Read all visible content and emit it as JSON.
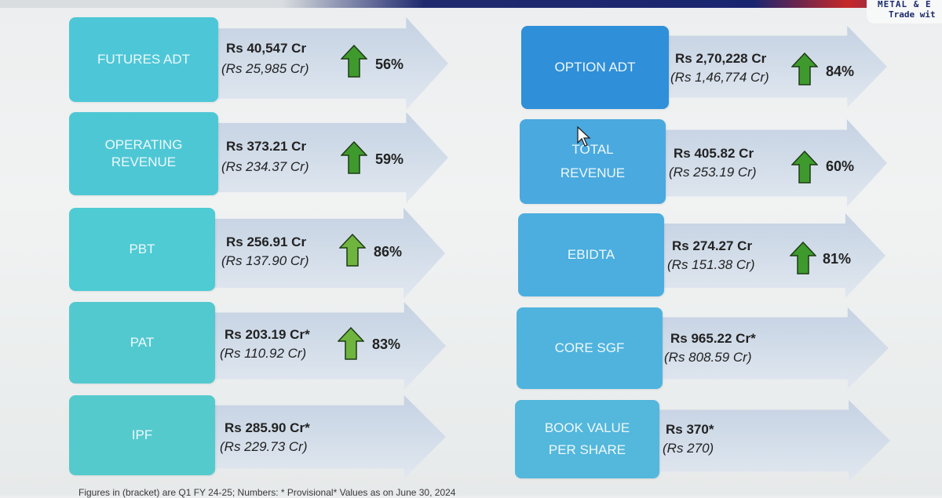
{
  "header": {
    "logo_line1": "METAL & E",
    "logo_line2": "Trade wit"
  },
  "colors": {
    "teal_box": "#4fc8d7",
    "blue_box": "#4aa9de",
    "dark_blue_box": "#2f8fd8",
    "arrow": "#c9d5e4",
    "up_arrow": "#3f9a2e"
  },
  "left": [
    {
      "label_1": "FUTURES ADT",
      "label_2": "",
      "value": "Rs 40,547 Cr",
      "prev": "(Rs 25,985 Cr)",
      "growth": "56%"
    },
    {
      "label_1": "OPERATING",
      "label_2": "REVENUE",
      "value": "Rs 373.21 Cr",
      "prev": "(Rs 234.37 Cr)",
      "growth": "59%"
    },
    {
      "label_1": "PBT",
      "label_2": "",
      "value": "Rs 256.91 Cr",
      "prev": "(Rs  137.90 Cr)",
      "growth": "86%"
    },
    {
      "label_1": "PAT",
      "label_2": "",
      "value": "Rs 203.19 Cr*",
      "prev": "(Rs 110.92 Cr)",
      "growth": "83%"
    },
    {
      "label_1": "IPF",
      "label_2": "",
      "value": "Rs 285.90 Cr*",
      "prev": "(Rs 229.73 Cr)",
      "growth": ""
    }
  ],
  "right": [
    {
      "label_1": "OPTION ADT",
      "label_2": "",
      "value": "Rs 2,70,228 Cr",
      "prev": "(Rs 1,46,774 Cr)",
      "growth": "84%"
    },
    {
      "label_1": "TOTAL",
      "label_2": "REVENUE",
      "value": "Rs 405.82 Cr",
      "prev": "(Rs 253.19 Cr)",
      "growth": "60%"
    },
    {
      "label_1": "EBIDTA",
      "label_2": "",
      "value": "Rs 274.27 Cr",
      "prev": "(Rs  151.38 Cr)",
      "growth": "81%"
    },
    {
      "label_1": "CORE SGF",
      "label_2": "",
      "value": "Rs 965.22 Cr*",
      "prev": "(Rs 808.59 Cr)",
      "growth": ""
    },
    {
      "label_1": "BOOK VALUE",
      "label_2": "PER SHARE",
      "value": "Rs 370*",
      "prev": "(Rs 270)",
      "growth": ""
    }
  ],
  "footnote": "Figures in (bracket) are Q1 FY 24-25; Numbers: * Provisional* Values as on June 30, 2024"
}
